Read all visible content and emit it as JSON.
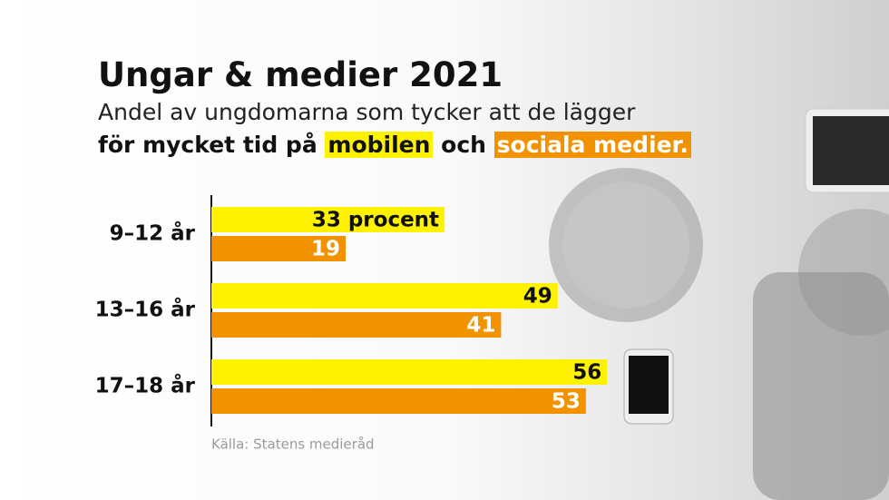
{
  "chart_data": {
    "type": "barh",
    "title": "Ungar & medier 2021",
    "subtitle": [
      "Andel av ungdomarna som tycker att de lägger",
      "för mycket tid på",
      "och"
    ],
    "categories": [
      "9–12 år",
      "13–16 år",
      "17–18 år"
    ],
    "series": [
      {
        "name": "mobilen",
        "color": "#fff200",
        "values": [
          33,
          49,
          56
        ],
        "value_labels": [
          "33 procent",
          "49",
          "56"
        ]
      },
      {
        "name": "sociala medier.",
        "color": "#f39200",
        "values": [
          19,
          41,
          53
        ]
      }
    ],
    "xlim": [
      0,
      100
    ],
    "source": "Källa: Statens medieråd"
  }
}
